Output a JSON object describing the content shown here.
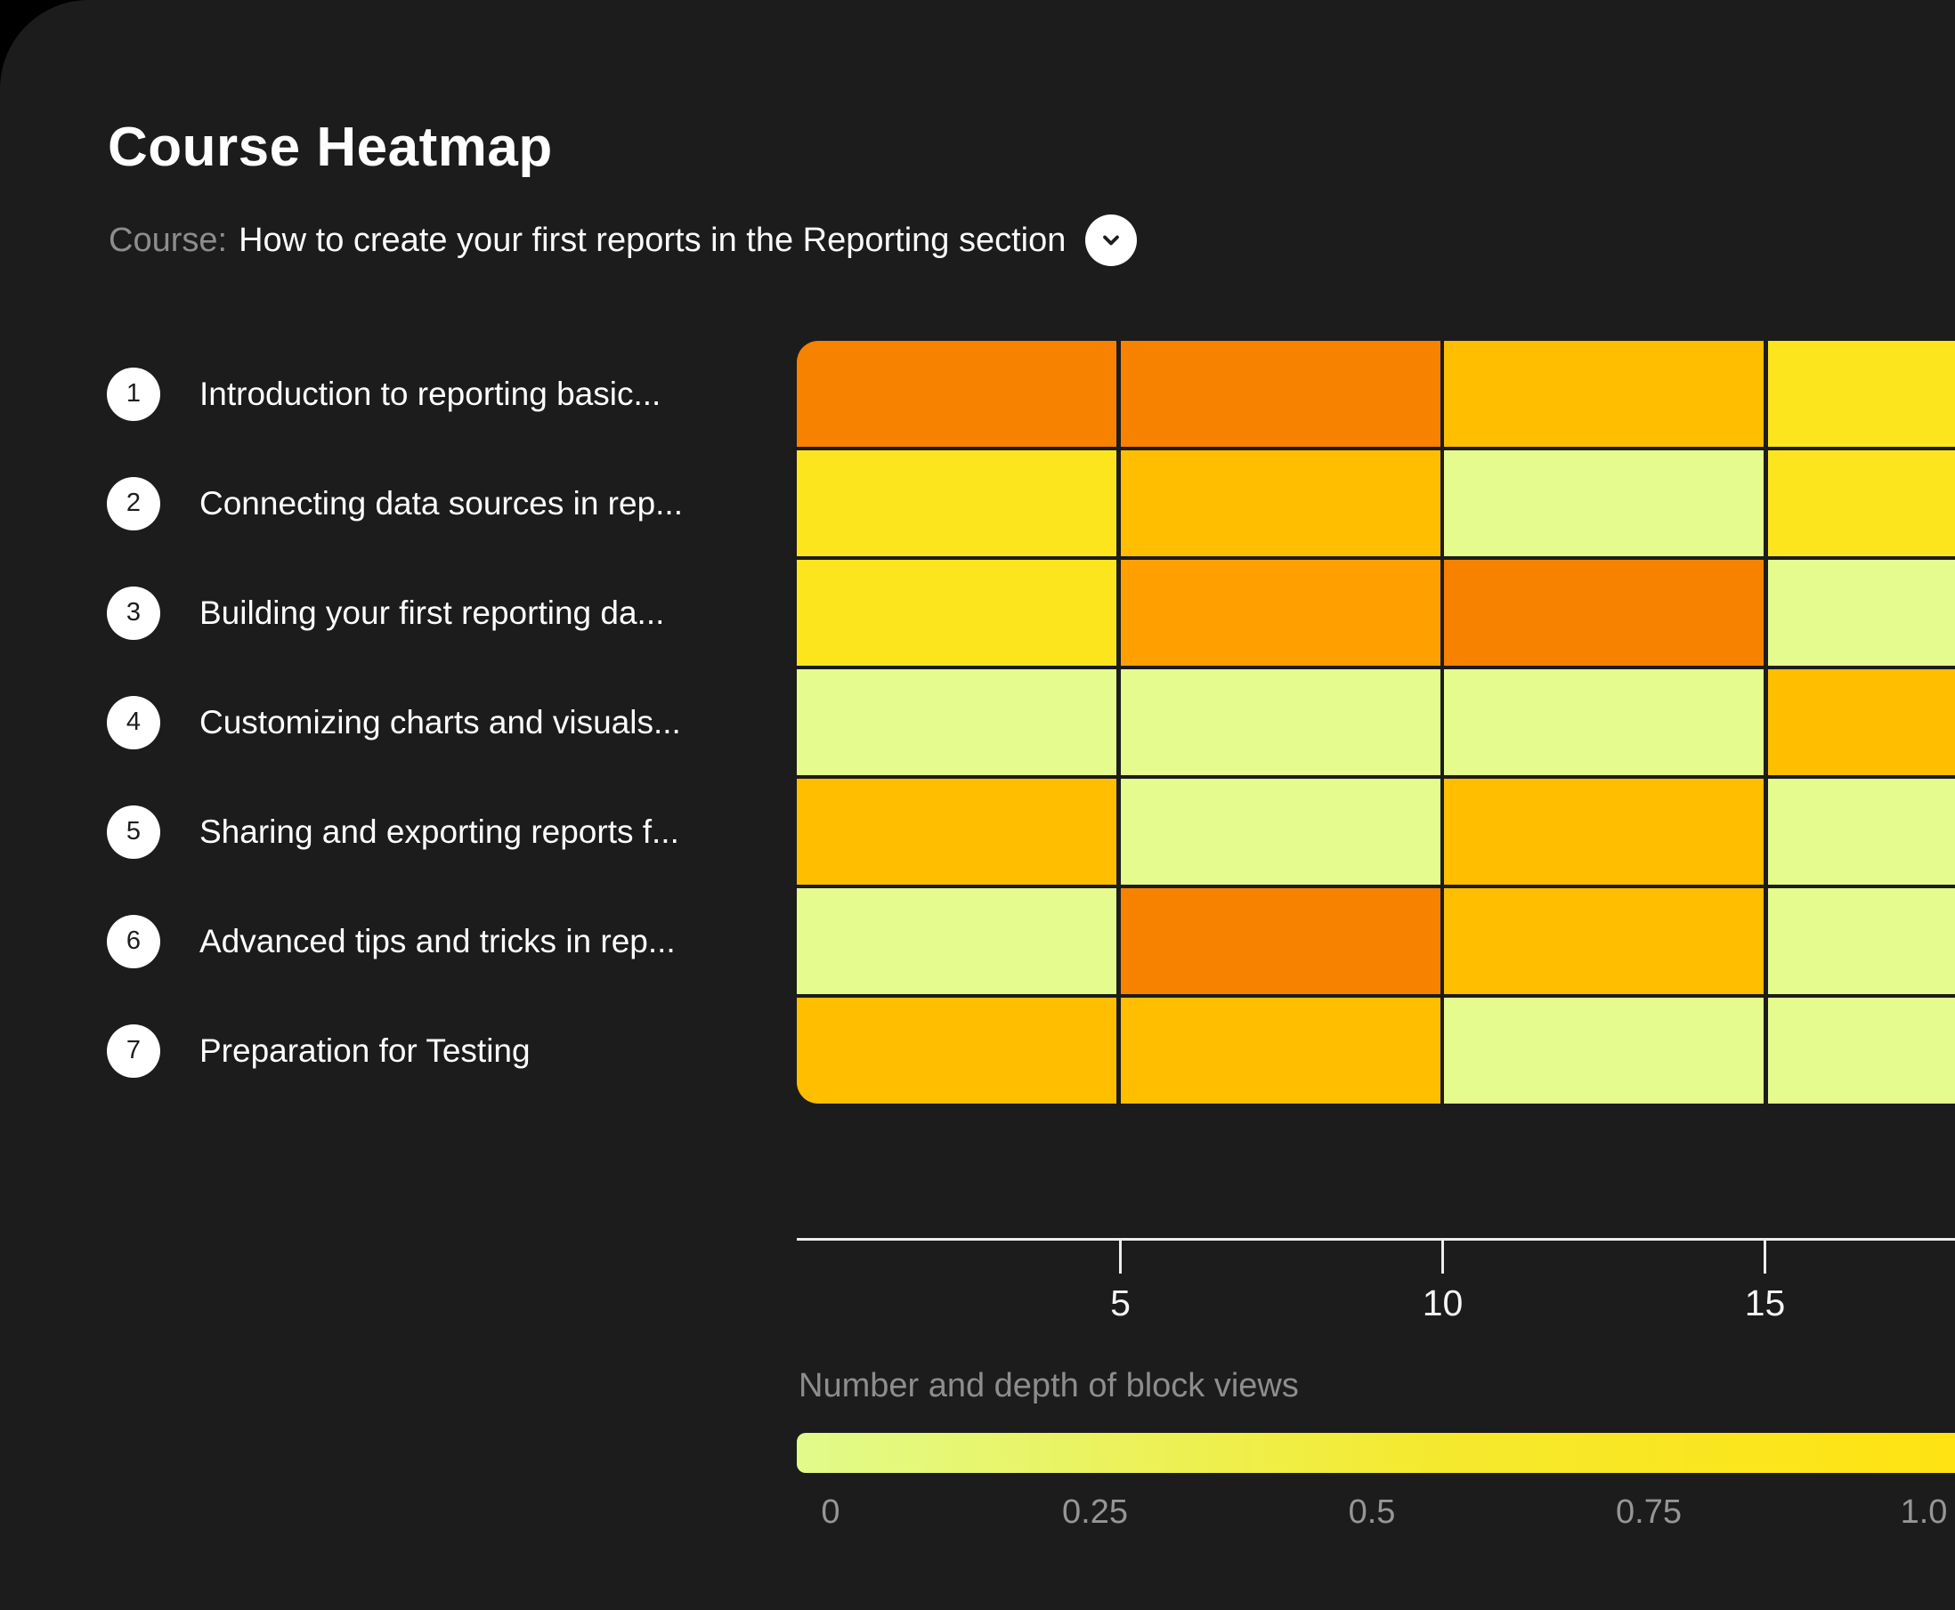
{
  "header": {
    "title": "Course Heatmap",
    "course_label": "Course:",
    "course_value": "How to create your first reports in the Reporting section"
  },
  "modules": [
    {
      "num": "1",
      "title": "Introduction to reporting basic..."
    },
    {
      "num": "2",
      "title": "Connecting data sources in rep..."
    },
    {
      "num": "3",
      "title": "Building your first reporting da..."
    },
    {
      "num": "4",
      "title": "Customizing charts and visuals..."
    },
    {
      "num": "5",
      "title": "Sharing and exporting reports f..."
    },
    {
      "num": "6",
      "title": "Advanced tips and tricks in rep..."
    },
    {
      "num": "7",
      "title": "Preparation for Testing"
    }
  ],
  "chart_data": {
    "type": "heatmap",
    "title": "Course Heatmap",
    "rows": [
      "Introduction to reporting basic...",
      "Connecting data sources in rep...",
      "Building your first reporting da...",
      "Customizing charts and visuals...",
      "Sharing and exporting reports f...",
      "Advanced tips and tricks in rep...",
      "Preparation for Testing"
    ],
    "x_axis": {
      "ticks": [
        5,
        10,
        15
      ],
      "min": 0,
      "units_per_column": 5,
      "columns_visible": 4,
      "grid": "off"
    },
    "cells": [
      [
        "deep_orange",
        "deep_orange",
        "amber",
        "yellow"
      ],
      [
        "yellow",
        "amber",
        "green",
        "yellow"
      ],
      [
        "yellow",
        "orange",
        "deep_orange",
        "green"
      ],
      [
        "green",
        "green",
        "green",
        "amber"
      ],
      [
        "amber",
        "green",
        "amber",
        "green"
      ],
      [
        "green",
        "deep_orange",
        "amber",
        "green"
      ],
      [
        "amber",
        "amber",
        "green",
        "green"
      ]
    ],
    "values": [
      [
        0.95,
        0.95,
        0.7,
        0.5
      ],
      [
        0.5,
        0.7,
        0.25,
        0.5
      ],
      [
        0.5,
        0.85,
        0.95,
        0.25
      ],
      [
        0.25,
        0.25,
        0.25,
        0.7
      ],
      [
        0.7,
        0.25,
        0.7,
        0.25
      ],
      [
        0.25,
        0.95,
        0.7,
        0.25
      ],
      [
        0.7,
        0.7,
        0.25,
        0.25
      ]
    ],
    "palette": {
      "green": "#E5FB8E",
      "yellow": "#FCE51C",
      "amber": "#FFBE00",
      "orange": "#FFA000",
      "deep_orange": "#F78200"
    },
    "legend": {
      "label": "Number and depth of block views",
      "ticks": [
        "0",
        "0.25",
        "0.5",
        "0.75",
        "1.0"
      ],
      "position": "bottom",
      "gradient_start": "#E1FB8A",
      "gradient_mid": "#F5E92E",
      "gradient_end": "#FFE312"
    }
  },
  "colors": {
    "page_background": "#000000",
    "card_background": "#1C1C1C",
    "text_primary": "#FFFFFF",
    "text_muted": "#8D8D8D",
    "axis": "#EDEDED"
  }
}
